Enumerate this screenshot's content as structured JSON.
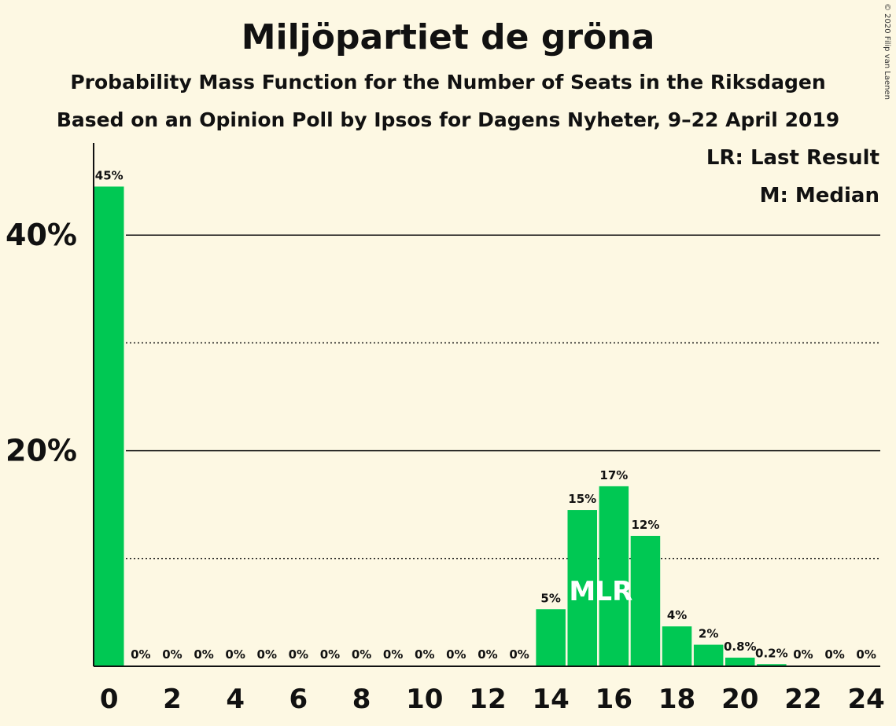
{
  "title": "Miljöpartiet de gröna",
  "subtitle": "Probability Mass Function for the Number of Seats in the Riksdagen",
  "subtitle2": "Based on an Opinion Poll by Ipsos for Dagens Nyheter, 9–22 April 2019",
  "copyright": "© 2020 Filip van Laenen",
  "colors": {
    "bar": "#00c853",
    "background": "#fdf8e3",
    "text": "#111111"
  },
  "chart_data": {
    "type": "bar",
    "x": [
      0,
      1,
      2,
      3,
      4,
      5,
      6,
      7,
      8,
      9,
      10,
      11,
      12,
      13,
      14,
      15,
      16,
      17,
      18,
      19,
      20,
      21,
      22,
      23,
      24
    ],
    "values": [
      44.5,
      0,
      0,
      0,
      0,
      0,
      0,
      0,
      0,
      0,
      0,
      0,
      0,
      0,
      5.3,
      14.5,
      16.7,
      12.1,
      3.7,
      2.0,
      0.8,
      0.2,
      0,
      0,
      0
    ],
    "data_labels": [
      "45%",
      "0%",
      "0%",
      "0%",
      "0%",
      "0%",
      "0%",
      "0%",
      "0%",
      "0%",
      "0%",
      "0%",
      "0%",
      "0%",
      "5%",
      "15%",
      "17%",
      "12%",
      "4%",
      "2%",
      "0.8%",
      "0.2%",
      "0%",
      "0%",
      "0%"
    ],
    "x_tick_labels": [
      "0",
      "2",
      "4",
      "6",
      "8",
      "10",
      "12",
      "14",
      "16",
      "18",
      "20",
      "22",
      "24"
    ],
    "y_tick_labels": [
      "20%",
      "40%"
    ],
    "ylim": [
      0,
      48
    ],
    "gridlines": {
      "solid": [
        20,
        40
      ],
      "dotted": [
        10,
        30
      ]
    },
    "markers": [
      {
        "x": 15,
        "label": "M"
      },
      {
        "x": 16,
        "label": "LR"
      }
    ],
    "legend": [
      "LR: Last Result",
      "M: Median"
    ],
    "legend_position": "top-right"
  }
}
